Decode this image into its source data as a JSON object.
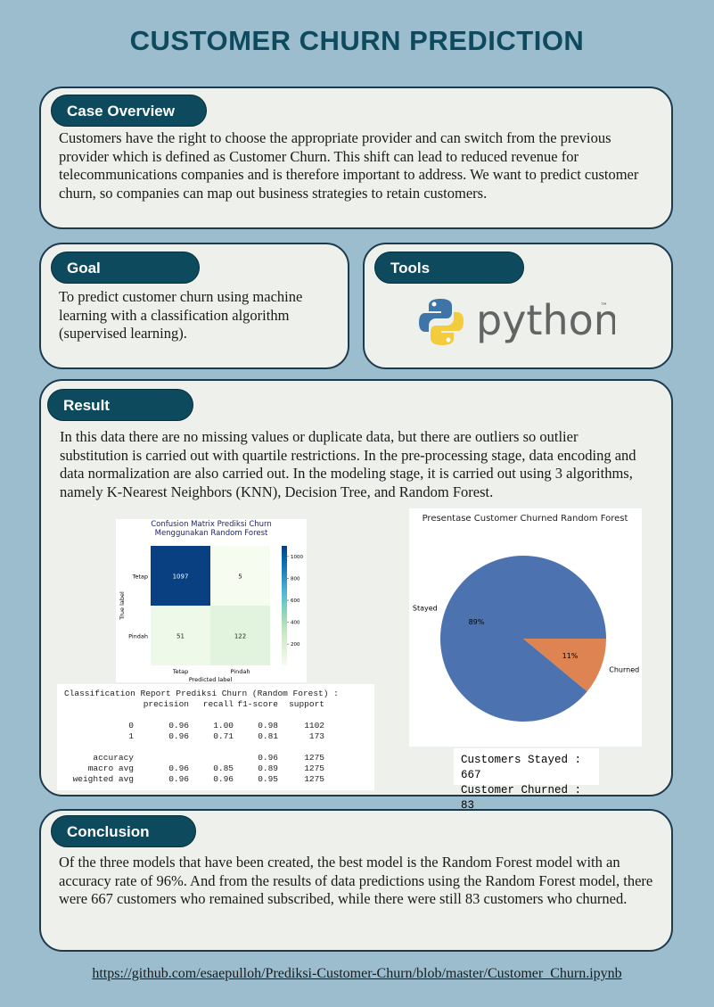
{
  "header": {
    "title": "CUSTOMER CHURN PREDICTION"
  },
  "case_overview": {
    "heading": "Case Overview",
    "text": "Customers have the right to choose the appropriate provider and can switch from the previous provider which is defined as Customer Churn. This shift can lead to reduced revenue for telecommunications companies and is therefore important to address. We want  to predict customer churn, so companies can map out business strategies to retain customers."
  },
  "goal": {
    "heading": "Goal",
    "text": "To predict customer churn using machine learning with a classification algorithm (supervised learning)."
  },
  "tools": {
    "heading": "Tools",
    "logo_text": "python",
    "trademark": "™"
  },
  "result": {
    "heading": "Result",
    "text": "In this data there are no missing values or duplicate data, but there are outliers so outlier substitution is carried out with quartile restrictions. In the pre-processing stage, data encoding and data normalization are also carried out. In the modeling stage, it is carried out using 3 algorithms, namely K-Nearest Neighbors (KNN), Decision Tree, and Random Forest.",
    "confusion_matrix": {
      "type": "heatmap",
      "title_lines": [
        "Confusion Matrix Prediksi Churn",
        "Menggunakan Random Forest"
      ],
      "row_labels": [
        "Tetap",
        "Pindah"
      ],
      "col_labels": [
        "Tetap",
        "Pindah"
      ],
      "values": [
        [
          1097,
          5
        ],
        [
          51,
          122
        ]
      ],
      "x_label": "Predicted label",
      "y_label": "True label",
      "colorbar_ticks": [
        200,
        400,
        600,
        800,
        1000
      ],
      "colormap": [
        "#f7fcf0",
        "#e0f3db",
        "#ccebc5",
        "#a8ddb5",
        "#7bccc4",
        "#4eb3d3",
        "#2b8cbe",
        "#0868ac",
        "#084081"
      ]
    },
    "report": {
      "title": "Classification Report Prediksi Churn (Random Forest) :",
      "columns": [
        "precision",
        "recall",
        "f1-score",
        "support"
      ],
      "rows": [
        [
          "0",
          "0.96",
          "1.00",
          "0.98",
          "1102"
        ],
        [
          "1",
          "0.96",
          "0.71",
          "0.81",
          "173"
        ],
        [
          "accuracy",
          null,
          null,
          "0.96",
          "1275"
        ],
        [
          "macro avg",
          "0.96",
          "0.85",
          "0.89",
          "1275"
        ],
        [
          "weighted avg",
          "0.96",
          "0.96",
          "0.95",
          "1275"
        ]
      ]
    },
    "pie": {
      "type": "pie",
      "title": "Presentase Customer Churned Random Forest",
      "categories": [
        "Stayed",
        "Churned"
      ],
      "values": [
        89,
        11
      ],
      "value_labels": [
        "89%",
        "11%"
      ],
      "colors": [
        "#4c72b0",
        "#dd8452"
      ]
    },
    "counts": [
      "Customers Stayed : 667",
      "Customer Churned : 83"
    ]
  },
  "conclusion": {
    "heading": "Conclusion",
    "text": "Of the three models that have been created, the best model is the Random Forest model with an  accuracy rate of 96%. And from the results of data predictions using the Random Forest model, there were 667 customers who remained subscribed, while there were still 83 customers who churned."
  },
  "footer": {
    "link": "https://github.com/esaepulloh/Prediksi-Customer-Churn/blob/master/Customer_Churn.ipynb"
  }
}
